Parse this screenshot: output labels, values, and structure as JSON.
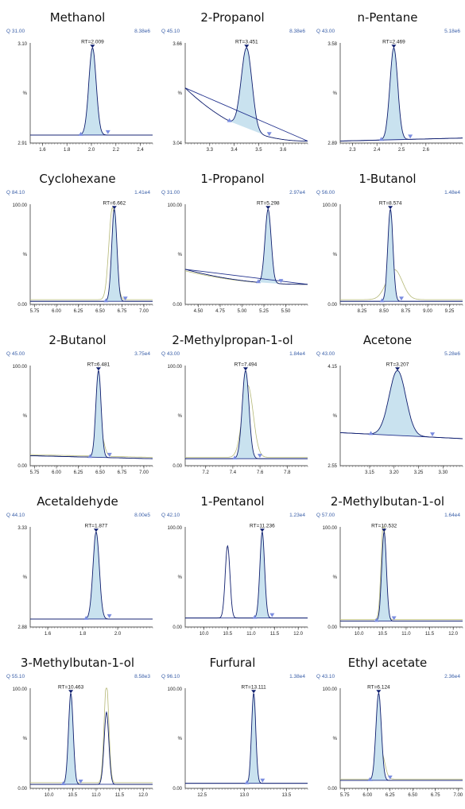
{
  "colors": {
    "baseline": "#1f2f8c",
    "trace": "#0f1e6e",
    "fill": "#c9e2ef",
    "secondary": "#b5b877",
    "marker": "#7b8de0",
    "info": "#3a5fa8"
  },
  "chart_data": [
    {
      "type": "line",
      "title": "Methanol",
      "q": "Q 31.00",
      "intensity": "8.38e6",
      "ylim": [
        "2.91",
        "3.10"
      ],
      "ymid": "%",
      "xlim": [
        1.5,
        2.5
      ],
      "xticks": [
        "1.6",
        "1.8",
        "2.0",
        "2.2",
        "2.4"
      ],
      "rt": "RT=2.009",
      "peak_x": 2.009,
      "peak_w": 0.03,
      "base_start": 0.08,
      "base_end": 0.08,
      "secondary": [],
      "extra_peaks": []
    },
    {
      "type": "line",
      "title": "2-Propanol",
      "q": "Q 45.10",
      "intensity": "8.38e6",
      "ylim": [
        "3.04",
        "3.66"
      ],
      "ymid": "%",
      "xlim": [
        3.2,
        3.7
      ],
      "xticks": [
        "3.3",
        "3.4",
        "3.5",
        "3.6"
      ],
      "rt": "RT=3.451",
      "peak_x": 3.451,
      "peak_w": 0.022,
      "base_start": 0.55,
      "base_end": 0.02,
      "secondary": [],
      "extra_peaks": []
    },
    {
      "type": "line",
      "title": "n-Pentane",
      "q": "Q 43.00",
      "intensity": "5.18e6",
      "ylim": [
        "2.89",
        "3.58"
      ],
      "ymid": "%",
      "xlim": [
        2.25,
        2.75
      ],
      "xticks": [
        "2.3",
        "2.4",
        "2.5",
        "2.6"
      ],
      "rt": "RT=2.469",
      "peak_x": 2.469,
      "peak_w": 0.016,
      "base_start": 0.02,
      "base_end": 0.05,
      "secondary": [],
      "extra_peaks": []
    },
    {
      "type": "line",
      "title": "Cyclohexane",
      "q": "Q 84.10",
      "intensity": "1.41e4",
      "ylim": [
        "0.00",
        "100.00"
      ],
      "ymid": "%",
      "xlim": [
        5.7,
        7.1
      ],
      "xticks": [
        "5.75",
        "6.00",
        "6.25",
        "6.50",
        "6.75",
        "7.00"
      ],
      "rt": "RT=6.662",
      "peak_x": 6.662,
      "peak_w": 0.03,
      "base_start": 0.03,
      "base_end": 0.03,
      "secondary": [
        {
          "x": 6.64,
          "w": 0.04,
          "h": 0.92
        }
      ],
      "extra_peaks": []
    },
    {
      "type": "line",
      "title": "1-Propanol",
      "q": "Q 31.00",
      "intensity": "2.97e4",
      "ylim": [
        "0.00",
        "100.00"
      ],
      "ymid": "%",
      "xlim": [
        4.35,
        5.75
      ],
      "xticks": [
        "4.50",
        "4.75",
        "5.00",
        "5.25",
        "5.50"
      ],
      "rt": "RT=5.298",
      "peak_x": 5.298,
      "peak_w": 0.035,
      "base_start": 0.35,
      "base_end": 0.2,
      "secondary": [
        {
          "x": 5.31,
          "w": 0.04,
          "h": 0.18
        }
      ],
      "extra_peaks": []
    },
    {
      "type": "line",
      "title": "1-Butanol",
      "q": "Q 56.00",
      "intensity": "1.48e4",
      "ylim": [
        "0.00",
        "100.00"
      ],
      "ymid": "%",
      "xlim": [
        8.0,
        9.4
      ],
      "xticks": [
        "8.25",
        "8.50",
        "8.75",
        "9.00",
        "9.25"
      ],
      "rt": "RT=8.574",
      "peak_x": 8.574,
      "peak_w": 0.03,
      "base_start": 0.03,
      "base_end": 0.03,
      "secondary": [
        {
          "x": 8.62,
          "w": 0.09,
          "h": 0.3
        }
      ],
      "extra_peaks": []
    },
    {
      "type": "line",
      "title": "2-Butanol",
      "q": "Q 45.00",
      "intensity": "3.75e4",
      "ylim": [
        "0.00",
        "100.00"
      ],
      "ymid": "%",
      "xlim": [
        5.7,
        7.1
      ],
      "xticks": [
        "5.75",
        "6.00",
        "6.25",
        "6.50",
        "6.75",
        "7.00"
      ],
      "rt": "RT=6.481",
      "peak_x": 6.481,
      "peak_w": 0.03,
      "base_start": 0.1,
      "base_end": 0.07,
      "secondary": [
        {
          "x": 6.5,
          "w": 0.04,
          "h": 0.25
        }
      ],
      "extra_peaks": []
    },
    {
      "type": "line",
      "title": "2-Methylpropan-1-ol",
      "q": "Q 43.00",
      "intensity": "1.84e4",
      "ylim": [
        "0.00",
        "100.00"
      ],
      "ymid": "%",
      "xlim": [
        7.05,
        7.95
      ],
      "xticks": [
        "7.2",
        "7.4",
        "7.6",
        "7.8"
      ],
      "rt": "RT=7.494",
      "peak_x": 7.494,
      "peak_w": 0.025,
      "base_start": 0.07,
      "base_end": 0.07,
      "secondary": [
        {
          "x": 7.51,
          "w": 0.04,
          "h": 0.72
        }
      ],
      "extra_peaks": []
    },
    {
      "type": "line",
      "title": "Acetone",
      "q": "Q 43.00",
      "intensity": "5.28e6",
      "ylim": [
        "2.55",
        "4.15"
      ],
      "ymid": "%",
      "xlim": [
        3.09,
        3.34
      ],
      "xticks": [
        "3.15",
        "3.20",
        "3.25",
        "3.30"
      ],
      "rt": "RT=3.207",
      "peak_x": 3.207,
      "peak_w": 0.017,
      "base_start": 0.33,
      "base_end": 0.27,
      "secondary": [],
      "extra_peaks": []
    },
    {
      "type": "line",
      "title": "Acetaldehyde",
      "q": "Q 44.10",
      "intensity": "8.00e5",
      "ylim": [
        "2.88",
        "3.33"
      ],
      "ymid": "%",
      "xlim": [
        1.5,
        2.2
      ],
      "xticks": [
        "1.6",
        "1.8",
        "2.0"
      ],
      "rt": "RT=1.877",
      "peak_x": 1.877,
      "peak_w": 0.018,
      "base_start": 0.08,
      "base_end": 0.08,
      "secondary": [],
      "extra_peaks": []
    },
    {
      "type": "line",
      "title": "1-Pentanol",
      "q": "Q 42.10",
      "intensity": "1.23e4",
      "ylim": [
        "0.00",
        "100.00"
      ],
      "ymid": "%",
      "xlim": [
        9.6,
        12.2
      ],
      "xticks": [
        "10.0",
        "10.5",
        "11.0",
        "11.5",
        "12.0"
      ],
      "rt": "RT=11.236",
      "peak_x": 11.236,
      "peak_w": 0.05,
      "base_start": 0.09,
      "base_end": 0.09,
      "secondary": [],
      "extra_peaks": [
        {
          "x": 10.5,
          "w": 0.05,
          "h": 0.72
        }
      ]
    },
    {
      "type": "line",
      "title": "2-Methylbutan-1-ol",
      "q": "Q 57.00",
      "intensity": "1.64e4",
      "ylim": [
        "0.00",
        "100.00"
      ],
      "ymid": "%",
      "xlim": [
        9.6,
        12.2
      ],
      "xticks": [
        "10.0",
        "10.5",
        "11.0",
        "11.5",
        "12.0"
      ],
      "rt": "RT=10.532",
      "peak_x": 10.532,
      "peak_w": 0.05,
      "base_start": 0.06,
      "base_end": 0.06,
      "secondary": [
        {
          "x": 10.52,
          "w": 0.05,
          "h": 0.98
        }
      ],
      "extra_peaks": []
    },
    {
      "type": "line",
      "title": "3-Methylbutan-1-ol",
      "q": "Q 55.10",
      "intensity": "8.58e3",
      "ylim": [
        "0.00",
        "100.00"
      ],
      "ymid": "%",
      "xlim": [
        9.6,
        12.2
      ],
      "xticks": [
        "10.0",
        "10.5",
        "11.0",
        "11.5",
        "12.0"
      ],
      "rt": "RT=10.463",
      "peak_x": 10.463,
      "peak_w": 0.05,
      "base_start": 0.04,
      "base_end": 0.04,
      "secondary": [
        {
          "x": 11.22,
          "w": 0.05,
          "h": 1.0
        }
      ],
      "extra_peaks": [
        {
          "x": 11.22,
          "w": 0.05,
          "h": 0.72
        }
      ]
    },
    {
      "type": "line",
      "title": "Furfural",
      "q": "Q 96.10",
      "intensity": "1.38e4",
      "ylim": [
        "0.00",
        "100.00"
      ],
      "ymid": "%",
      "xlim": [
        12.3,
        13.75
      ],
      "xticks": [
        "12.5",
        "13.0",
        "13.5"
      ],
      "rt": "RT=13.111",
      "peak_x": 13.111,
      "peak_w": 0.025,
      "base_start": 0.05,
      "base_end": 0.05,
      "secondary": [],
      "extra_peaks": []
    },
    {
      "type": "line",
      "title": "Ethyl acetate",
      "q": "Q 43.10",
      "intensity": "2.36e4",
      "ylim": [
        "0.00",
        "100.00"
      ],
      "ymid": "%",
      "xlim": [
        5.7,
        7.05
      ],
      "xticks": [
        "5.75",
        "6.00",
        "6.25",
        "6.50",
        "6.75",
        "7.00"
      ],
      "rt": "RT=6.124",
      "peak_x": 6.124,
      "peak_w": 0.03,
      "base_start": 0.08,
      "base_end": 0.08,
      "secondary": [
        {
          "x": 6.15,
          "w": 0.04,
          "h": 0.28
        }
      ],
      "extra_peaks": []
    }
  ]
}
